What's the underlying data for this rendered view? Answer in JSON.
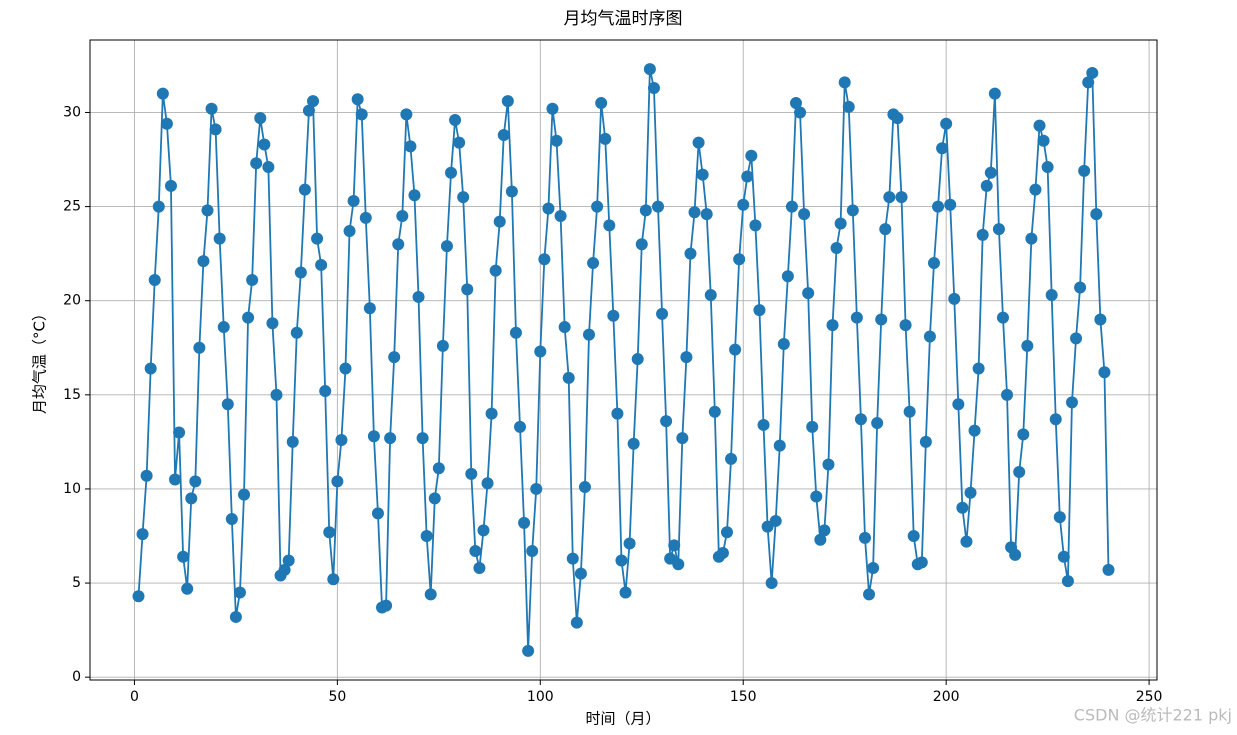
{
  "chart_data": {
    "type": "line",
    "title": "月均气温时序图",
    "x_label": "时间（月）",
    "y_label": "月均气温（°C）",
    "watermark": "CSDN @统计221 pkj",
    "x": [
      1,
      2,
      3,
      4,
      5,
      6,
      7,
      8,
      9,
      10,
      11,
      12,
      13,
      14,
      15,
      16,
      17,
      18,
      19,
      20,
      21,
      22,
      23,
      24,
      25,
      26,
      27,
      28,
      29,
      30,
      31,
      32,
      33,
      34,
      35,
      36,
      37,
      38,
      39,
      40,
      41,
      42,
      43,
      44,
      45,
      46,
      47,
      48,
      49,
      50,
      51,
      52,
      53,
      54,
      55,
      56,
      57,
      58,
      59,
      60,
      61,
      62,
      63,
      64,
      65,
      66,
      67,
      68,
      69,
      70,
      71,
      72,
      73,
      74,
      75,
      76,
      77,
      78,
      79,
      80,
      81,
      82,
      83,
      84,
      85,
      86,
      87,
      88,
      89,
      90,
      91,
      92,
      93,
      94,
      95,
      96,
      97,
      98,
      99,
      100,
      101,
      102,
      103,
      104,
      105,
      106,
      107,
      108,
      109,
      110,
      111,
      112,
      113,
      114,
      115,
      116,
      117,
      118,
      119,
      120,
      121,
      122,
      123,
      124,
      125,
      126,
      127,
      128,
      129,
      130,
      131,
      132,
      133,
      134,
      135,
      136,
      137,
      138,
      139,
      140,
      141,
      142,
      143,
      144,
      145,
      146,
      147,
      148,
      149,
      150,
      151,
      152,
      153,
      154,
      155,
      156,
      157,
      158,
      159,
      160,
      161,
      162,
      163,
      164,
      165,
      166,
      167,
      168,
      169,
      170,
      171,
      172,
      173,
      174,
      175,
      176,
      177,
      178,
      179,
      180,
      181,
      182,
      183,
      184,
      185,
      186,
      187,
      188,
      189,
      190,
      191,
      192,
      193,
      194,
      195,
      196,
      197,
      198,
      199,
      200,
      201,
      202,
      203,
      204,
      205,
      206,
      207,
      208,
      209,
      210,
      211,
      212,
      213,
      214,
      215,
      216,
      217,
      218,
      219,
      220,
      221,
      222,
      223,
      224,
      225,
      226,
      227,
      228,
      229,
      230,
      231,
      232,
      233,
      234,
      235,
      236,
      237,
      238,
      239,
      240
    ],
    "series": [
      {
        "color": "#1f77b4",
        "values": [
          4.3,
          7.6,
          10.7,
          16.4,
          21.1,
          25.0,
          31.0,
          29.4,
          26.1,
          10.5,
          13.0,
          6.4,
          4.7,
          9.5,
          10.4,
          17.5,
          22.1,
          24.8,
          30.2,
          29.1,
          23.3,
          18.6,
          14.5,
          8.4,
          3.2,
          4.5,
          9.7,
          19.1,
          21.1,
          27.3,
          29.7,
          28.3,
          27.1,
          18.8,
          15.0,
          5.4,
          5.7,
          6.2,
          12.5,
          18.3,
          21.5,
          25.9,
          30.1,
          30.6,
          23.3,
          21.9,
          15.2,
          7.7,
          5.2,
          10.4,
          12.6,
          16.4,
          23.7,
          25.3,
          30.7,
          29.9,
          24.4,
          19.6,
          12.8,
          8.7,
          3.7,
          3.8,
          12.7,
          17.0,
          23.0,
          24.5,
          29.9,
          28.2,
          25.6,
          20.2,
          12.7,
          7.5,
          4.4,
          9.5,
          11.1,
          17.6,
          22.9,
          26.8,
          29.6,
          28.4,
          25.5,
          20.6,
          10.8,
          6.7,
          5.8,
          7.8,
          10.3,
          14.0,
          21.6,
          24.2,
          28.8,
          30.6,
          25.8,
          18.3,
          13.3,
          8.2,
          1.4,
          6.7,
          10.0,
          17.3,
          22.2,
          24.9,
          30.2,
          28.5,
          24.5,
          18.6,
          15.9,
          6.3,
          2.9,
          5.5,
          10.1,
          18.2,
          22.0,
          25.0,
          30.5,
          28.6,
          24.0,
          19.2,
          14.0,
          6.2,
          4.5,
          7.1,
          12.4,
          16.9,
          23.0,
          24.8,
          32.3,
          31.3,
          25.0,
          19.3,
          13.6,
          6.3,
          7.0,
          6.0,
          12.7,
          17.0,
          22.5,
          24.7,
          28.4,
          26.7,
          24.6,
          20.3,
          14.1,
          6.4,
          6.6,
          7.7,
          11.6,
          17.4,
          22.2,
          25.1,
          26.6,
          27.7,
          24.0,
          19.5,
          13.4,
          8.0,
          5.0,
          8.3,
          12.3,
          17.7,
          21.3,
          25.0,
          30.5,
          30.0,
          24.6,
          20.4,
          13.3,
          9.6,
          7.3,
          7.8,
          11.3,
          18.7,
          22.8,
          24.1,
          31.6,
          30.3,
          24.8,
          19.1,
          13.7,
          7.4,
          4.4,
          5.8,
          13.5,
          19.0,
          23.8,
          25.5,
          29.9,
          29.7,
          25.5,
          18.7,
          14.1,
          7.5,
          6.0,
          6.1,
          12.5,
          18.1,
          22.0,
          25.0,
          28.1,
          29.4,
          25.1,
          20.1,
          14.5,
          9.0,
          7.2,
          9.8,
          13.1,
          16.4,
          23.5,
          26.1,
          26.8,
          31.0,
          23.8,
          19.1,
          15.0,
          6.9,
          6.5,
          10.9,
          12.9,
          17.6,
          23.3,
          25.9,
          29.3,
          28.5,
          27.1,
          20.3,
          13.7,
          8.5,
          6.4,
          5.1,
          14.6,
          18.0,
          20.7,
          26.9,
          31.6,
          32.1,
          24.6,
          19.0,
          16.2,
          5.7
        ]
      }
    ],
    "xlim": [
      -10.95,
      251.95
    ],
    "ylim": [
      -0.15,
      33.85
    ],
    "xticks": [
      0,
      50,
      100,
      150,
      200,
      250
    ],
    "yticks": [
      0,
      5,
      10,
      15,
      20,
      25,
      30
    ],
    "grid": true
  }
}
